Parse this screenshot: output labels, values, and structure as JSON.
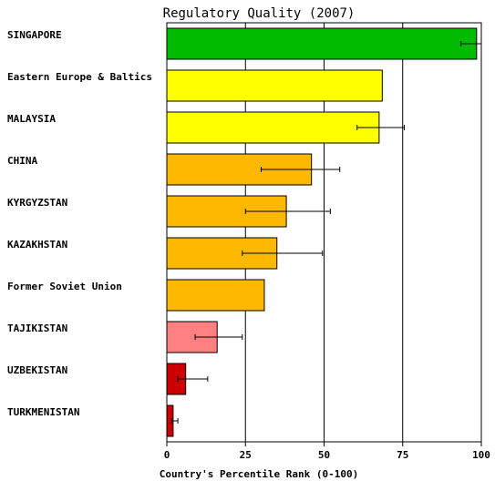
{
  "chart_data": {
    "type": "bar",
    "orientation": "horizontal",
    "title": "Regulatory Quality (2007)",
    "xlabel": "Country's Percentile Rank (0-100)",
    "ylabel": "",
    "xlim": [
      0,
      100
    ],
    "xticks": [
      "0",
      "25",
      "50",
      "75",
      "100"
    ],
    "grid": true,
    "categories": [
      "SINGAPORE",
      "Eastern Europe & Baltics",
      "MALAYSIA",
      "CHINA",
      "KYRGYZSTAN",
      "KAZAKHSTAN",
      "Former Soviet Union",
      "TAJIKISTAN",
      "UZBEKISTAN",
      "TURKMENISTAN"
    ],
    "values": [
      98.5,
      68.5,
      67.5,
      46,
      38,
      35,
      31,
      16,
      6,
      2
    ],
    "error_low": [
      93.5,
      null,
      60.5,
      30,
      25,
      24,
      null,
      9,
      3.5,
      1.5
    ],
    "error_high": [
      100,
      null,
      75.5,
      55,
      52,
      49.5,
      null,
      24,
      13,
      3.5
    ],
    "colors": [
      "#00bb00",
      "#ffff00",
      "#ffff00",
      "#ffb800",
      "#ffb800",
      "#ffb800",
      "#ffb800",
      "#ff8080",
      "#cc0000",
      "#cc0000"
    ]
  }
}
